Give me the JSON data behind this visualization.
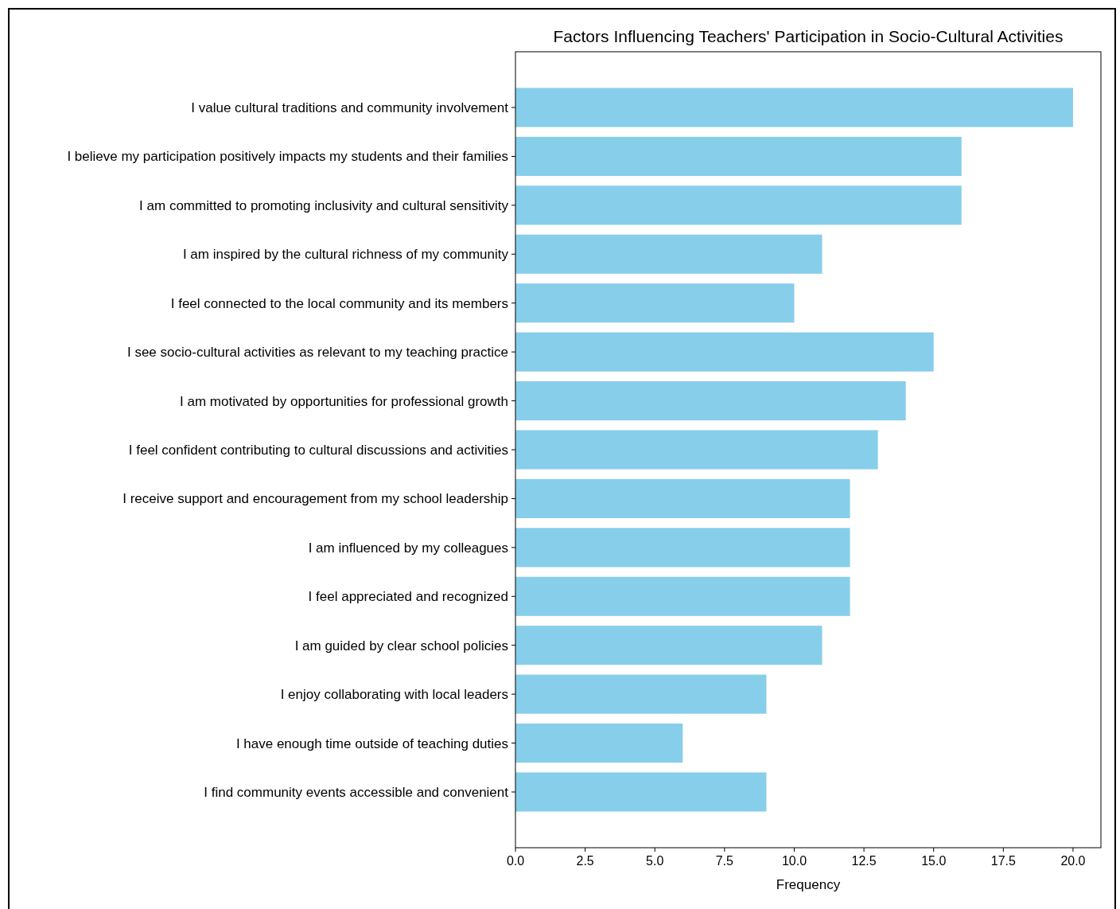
{
  "chart_data": {
    "type": "bar",
    "orientation": "horizontal",
    "title": "Factors Influencing Teachers' Participation in Socio-Cultural Activities",
    "xlabel": "Frequency",
    "categories": [
      "I value cultural traditions and community involvement",
      "I believe my participation positively impacts my students and their families",
      "I am committed to promoting inclusivity and cultural sensitivity",
      "I am inspired by the cultural richness of my community",
      "I feel connected to the local community and its members",
      "I see socio-cultural activities as relevant to my teaching practice",
      "I am motivated by opportunities for professional growth",
      "I feel confident contributing to cultural discussions and activities",
      "I receive support and encouragement from my school leadership",
      "I am influenced by my colleagues",
      "I feel appreciated and recognized",
      "I am guided by clear school policies",
      "I enjoy collaborating with local leaders",
      "I have enough time outside of teaching duties",
      "I find community events accessible and convenient"
    ],
    "values": [
      20,
      16,
      16,
      11,
      10,
      15,
      14,
      13,
      12,
      12,
      12,
      11,
      9,
      6,
      9
    ],
    "color": "#87ceeb",
    "xlim": [
      0,
      21
    ],
    "xticks": [
      {
        "value": 0,
        "label": "0.0"
      },
      {
        "value": 2.5,
        "label": "2.5"
      },
      {
        "value": 5,
        "label": "5.0"
      },
      {
        "value": 7.5,
        "label": "7.5"
      },
      {
        "value": 10,
        "label": "10.0"
      },
      {
        "value": 12.5,
        "label": "12.5"
      },
      {
        "value": 15,
        "label": "15.0"
      },
      {
        "value": 17.5,
        "label": "17.5"
      },
      {
        "value": 20,
        "label": "20.0"
      }
    ],
    "grid": false
  }
}
